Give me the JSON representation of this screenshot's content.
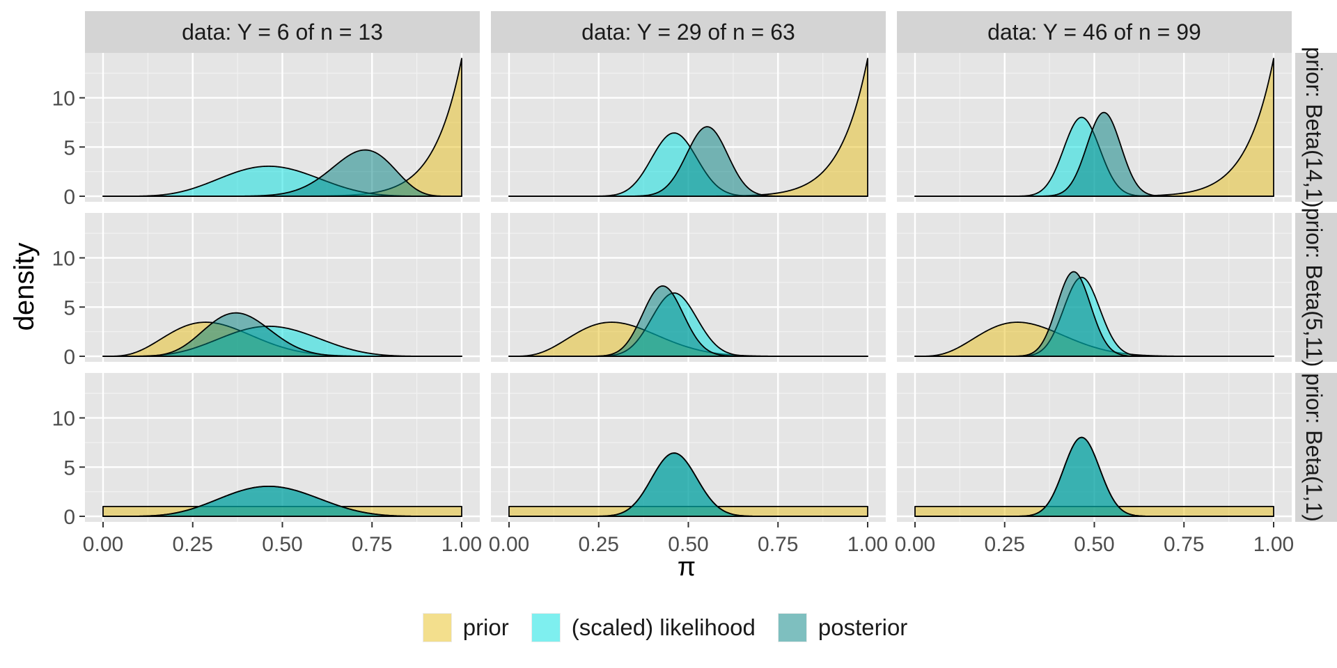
{
  "chart_data": {
    "type": "area",
    "facet_columns": [
      {
        "label": "data: Y = 6 of n = 13",
        "y": 6,
        "n": 13
      },
      {
        "label": "data: Y = 29 of n = 63",
        "y": 29,
        "n": 63
      },
      {
        "label": "data: Y = 46 of n = 99",
        "y": 46,
        "n": 99
      }
    ],
    "facet_rows": [
      {
        "label": "prior: Beta(14,1)",
        "alpha": 14,
        "beta": 1
      },
      {
        "label": "prior: Beta(5,11)",
        "alpha": 5,
        "beta": 11
      },
      {
        "label": "prior: Beta(1,1)",
        "alpha": 1,
        "beta": 1
      }
    ],
    "xlabel": "π",
    "ylabel": "density",
    "xlim": [
      0,
      1
    ],
    "ylim": [
      0,
      14
    ],
    "x_ticks": [
      "0.00",
      "0.25",
      "0.50",
      "0.75",
      "1.00"
    ],
    "y_ticks": [
      "0",
      "5",
      "10"
    ],
    "series": [
      {
        "name": "prior",
        "color": "#E8C01E"
      },
      {
        "name": "(scaled) likelihood",
        "color": "#00E0E0"
      },
      {
        "name": "posterior",
        "color": "#008080"
      }
    ],
    "legend_position": "bottom",
    "grid": true,
    "panel_background": "#E5E5E5",
    "strip_background": "#D4D4D4"
  }
}
